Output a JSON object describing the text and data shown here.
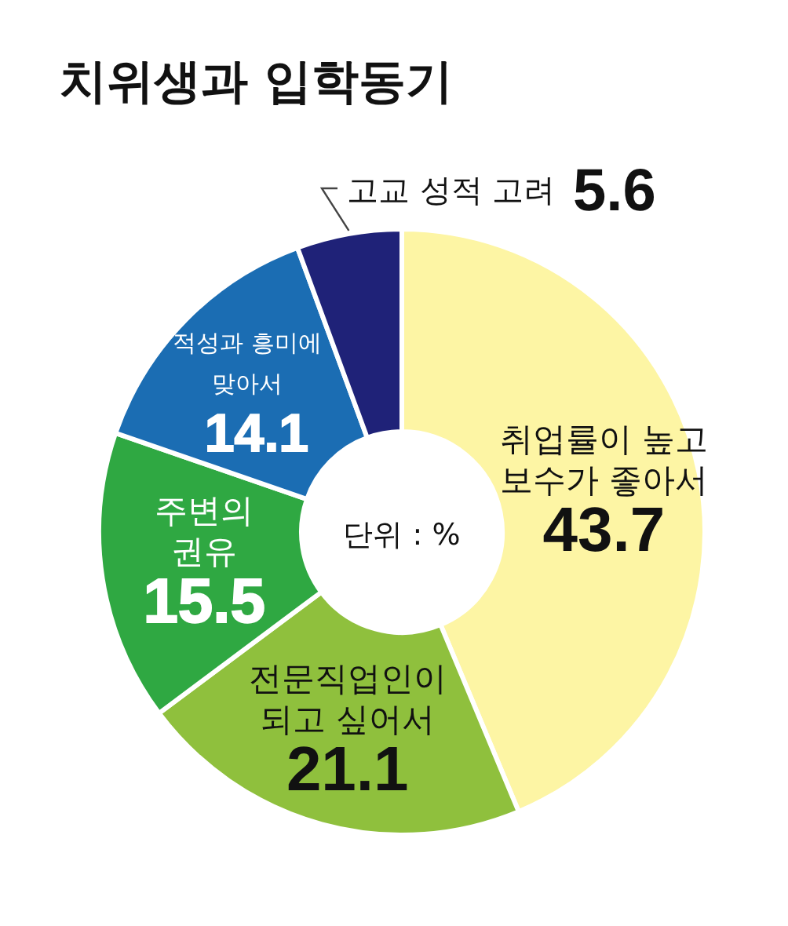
{
  "chart_data": {
    "type": "donut",
    "title": "치위생과 입학동기",
    "categories": [
      "취업률이 높고 보수가 좋아서",
      "전문직업인이 되고 싶어서",
      "주변의 권유",
      "적성과 흥미에 맞아서",
      "고교 성적 고려"
    ],
    "values": [
      43.7,
      21.1,
      15.5,
      14.1,
      5.6
    ],
    "colors": [
      "#fdf5a4",
      "#8fc03d",
      "#2fa842",
      "#1b6db3",
      "#1f2278"
    ],
    "data_labels": true,
    "annotations": [
      "단위 : %"
    ]
  }
}
